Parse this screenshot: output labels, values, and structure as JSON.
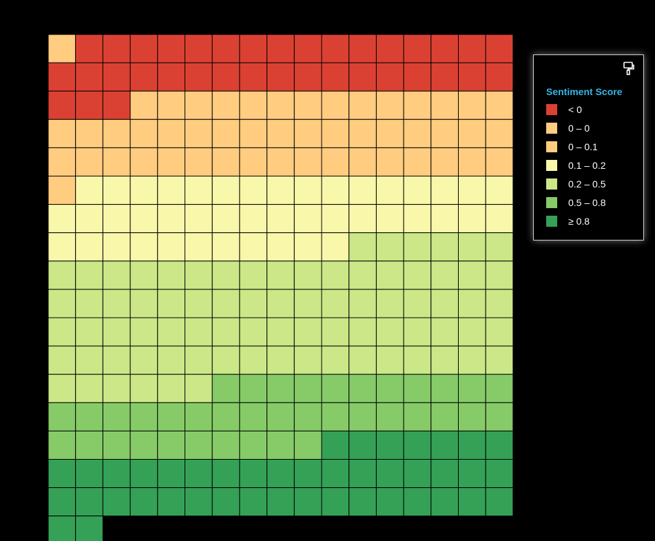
{
  "chart_data": {
    "type": "waffle",
    "title": "",
    "columns": 17,
    "total_cells": 291,
    "legend": {
      "title": "Sentiment Score",
      "tool_icon": "paint-roller-icon"
    },
    "categories": [
      {
        "label": "< 0",
        "count": 37,
        "color": "#db4133",
        "leading_cell_color": "#ffcc80"
      },
      {
        "label": "0 – 0",
        "count": 0,
        "color": "#ffcc80"
      },
      {
        "label": "0 – 0.1",
        "count": 49,
        "color": "#ffcc80"
      },
      {
        "label": "0.1 – 0.2",
        "count": 44,
        "color": "#f9f7a9"
      },
      {
        "label": "0.2 – 0.5",
        "count": 80,
        "color": "#cbe787"
      },
      {
        "label": "0.5 – 0.8",
        "count": 38,
        "color": "#86cb68"
      },
      {
        "label": "≥ 0.8",
        "count": 43,
        "color": "#35a156"
      }
    ]
  }
}
